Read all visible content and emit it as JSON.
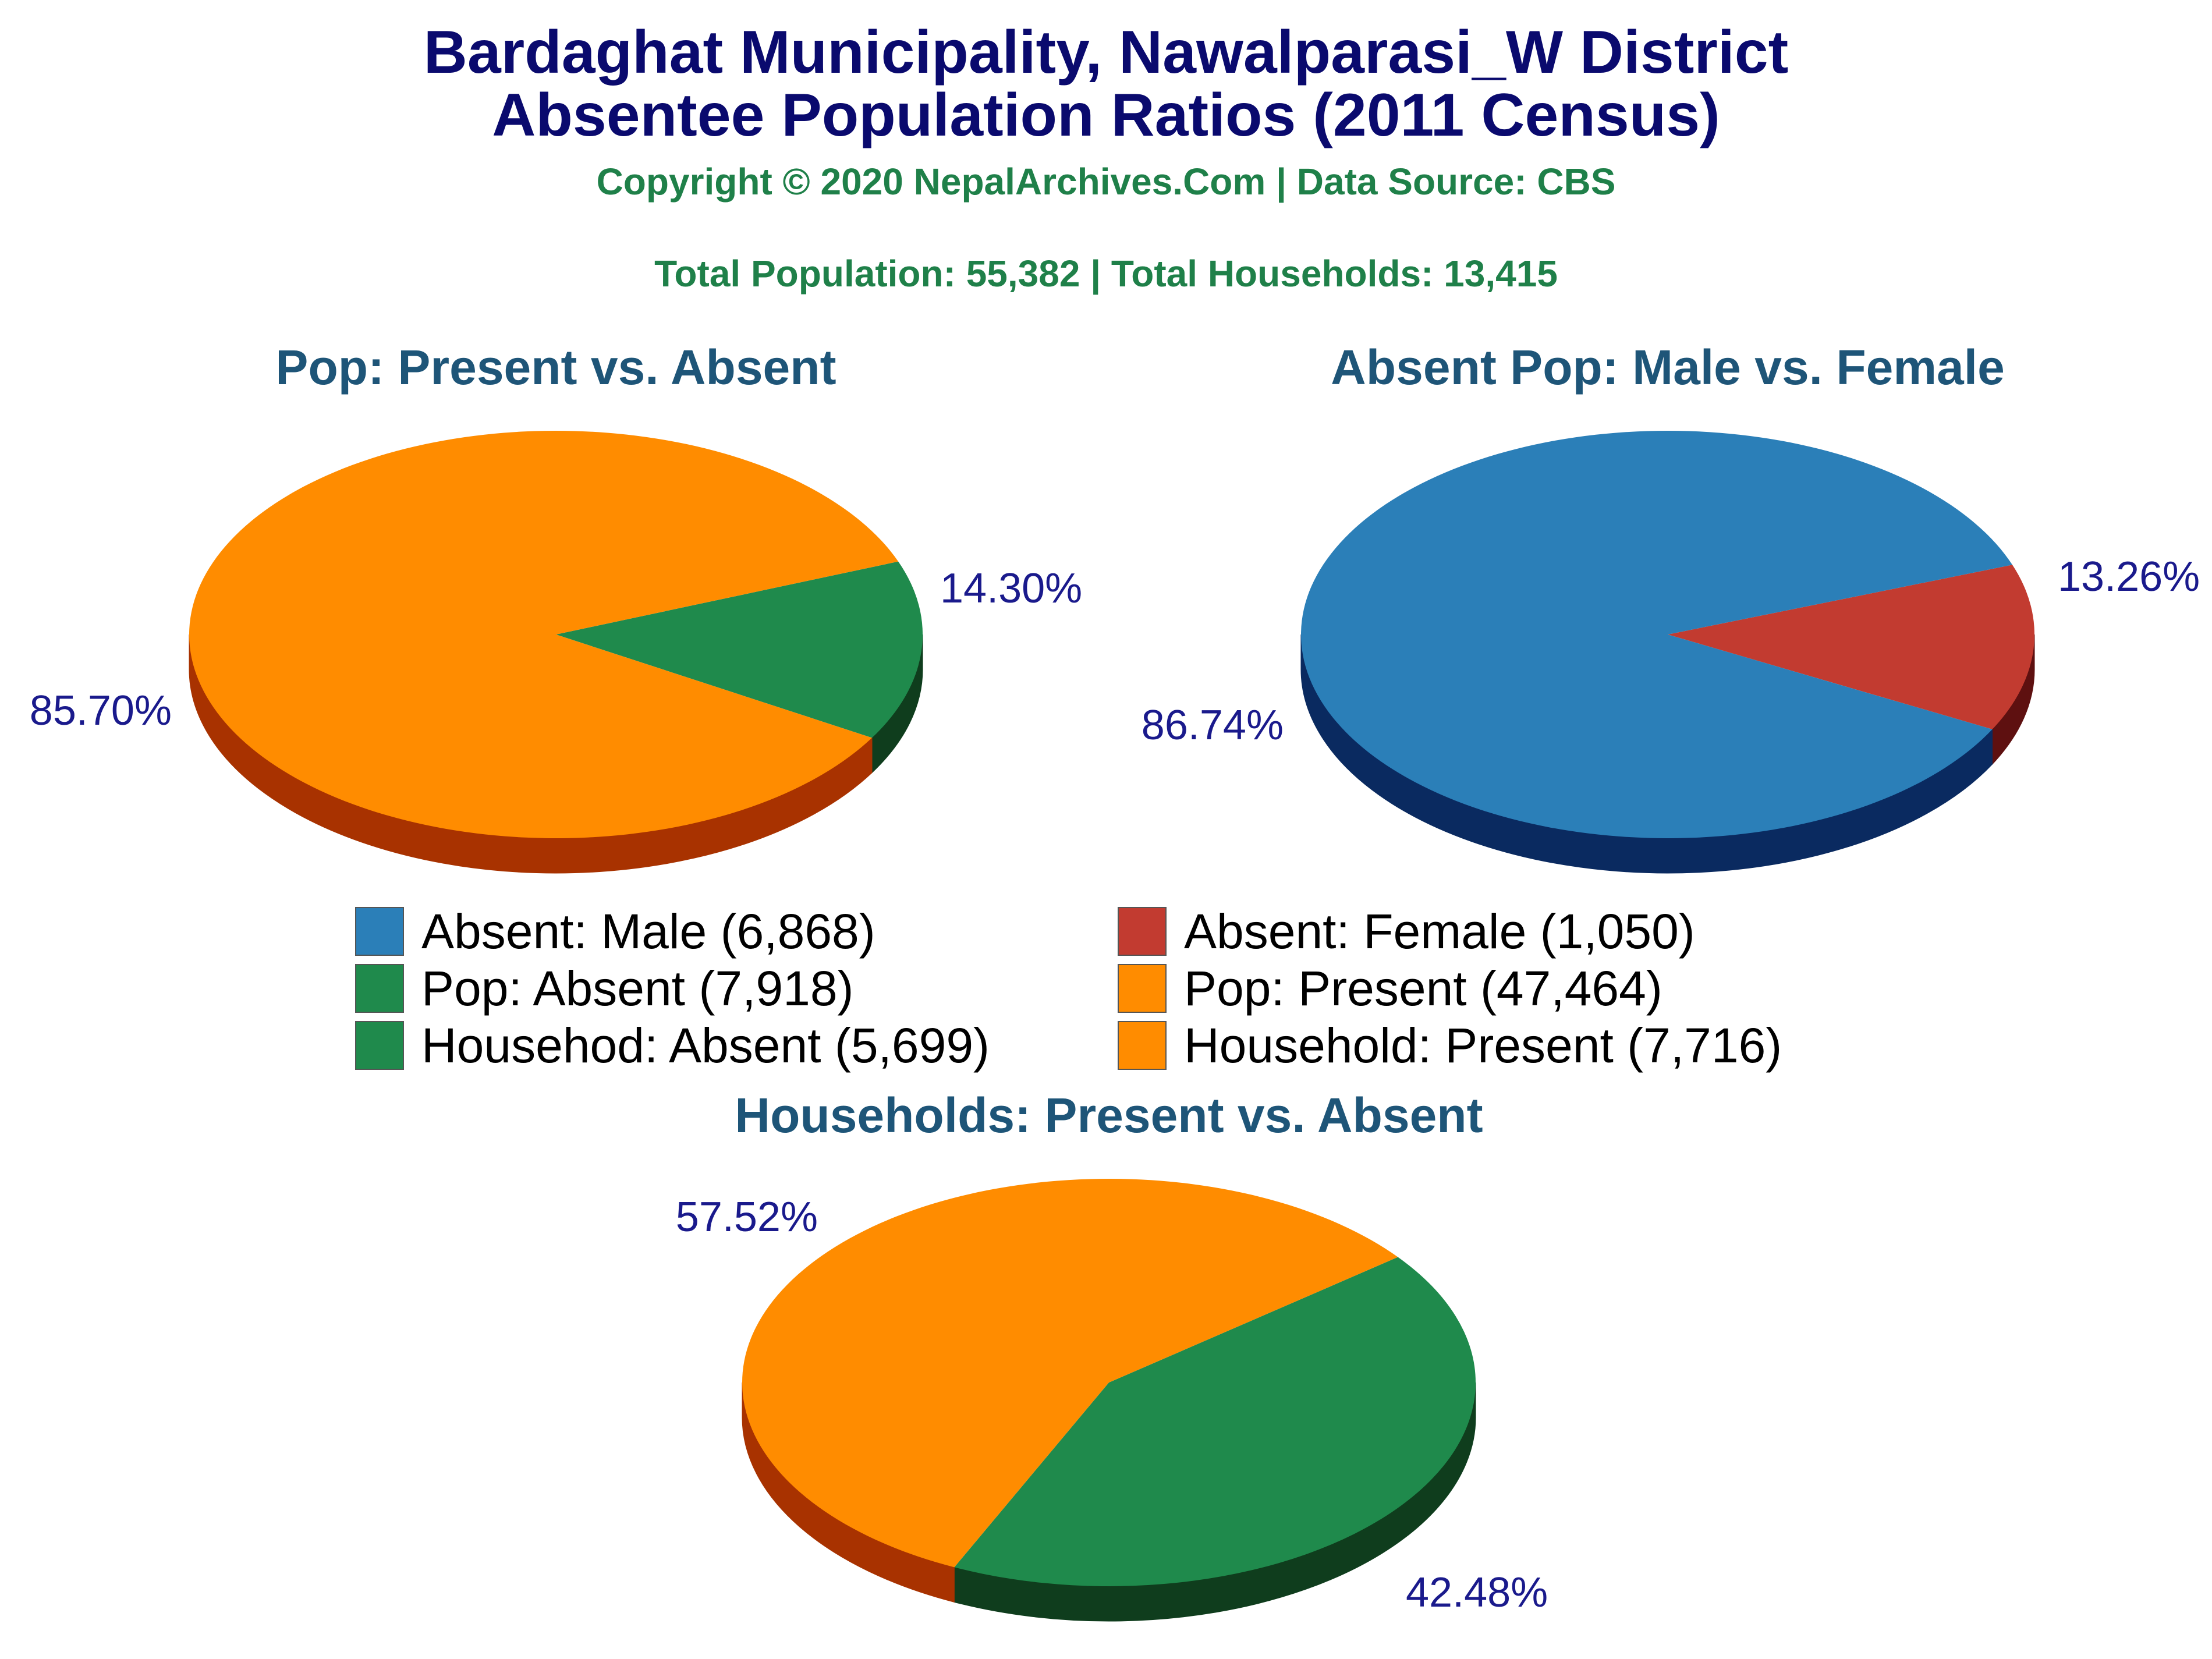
{
  "header": {
    "title_line1": "Bardaghat Municipality, Nawalparasi_W District",
    "title_line2": "Absentee Population Ratios (2011 Census)",
    "copyright": "Copyright © 2020 NepalArchives.Com | Data Source: CBS",
    "totals": "Total Population: 55,382 | Total Households: 13,415"
  },
  "legend": [
    {
      "label": "Absent: Male (6,868)",
      "color": "#2b7fb8"
    },
    {
      "label": "Absent: Female (1,050)",
      "color": "#c23b30"
    },
    {
      "label": "Pop: Absent (7,918)",
      "color": "#1f8a4c"
    },
    {
      "label": "Pop: Present (47,464)",
      "color": "#ff8c00"
    },
    {
      "label": "Househod: Absent (5,699)",
      "color": "#1f8a4c"
    },
    {
      "label": "Household: Present (7,716)",
      "color": "#ff8c00"
    }
  ],
  "chart_data": [
    {
      "type": "pie",
      "title": "Pop: Present vs. Absent",
      "slices": [
        {
          "name": "Pop: Absent",
          "value": 7918,
          "label": "14.30%",
          "color": "#1f8a4c",
          "side_color": "#0f3d1d"
        },
        {
          "name": "Pop: Present",
          "value": 47464,
          "label": "85.70%",
          "color": "#ff8c00",
          "side_color": "#a83200"
        }
      ]
    },
    {
      "type": "pie",
      "title": "Absent Pop: Male vs. Female",
      "slices": [
        {
          "name": "Absent: Female",
          "value": 1050,
          "label": "13.26%",
          "color": "#c23b30",
          "side_color": "#5e1010"
        },
        {
          "name": "Absent: Male",
          "value": 6868,
          "label": "86.74%",
          "color": "#2b7fb8",
          "side_color": "#0a2a60"
        }
      ]
    },
    {
      "type": "pie",
      "title": "Households: Present vs. Absent",
      "slices": [
        {
          "name": "Househod: Absent",
          "value": 5699,
          "label": "42.48%",
          "color": "#1f8a4c",
          "side_color": "#0f3d1d"
        },
        {
          "name": "Household: Present",
          "value": 7716,
          "label": "57.52%",
          "color": "#ff8c00",
          "side_color": "#a83200"
        }
      ]
    }
  ],
  "colors": {
    "title": "#0a0a6e",
    "subtitle": "#1f8049",
    "pie_title": "#1e5578",
    "pct_label": "#1a1a8c"
  }
}
